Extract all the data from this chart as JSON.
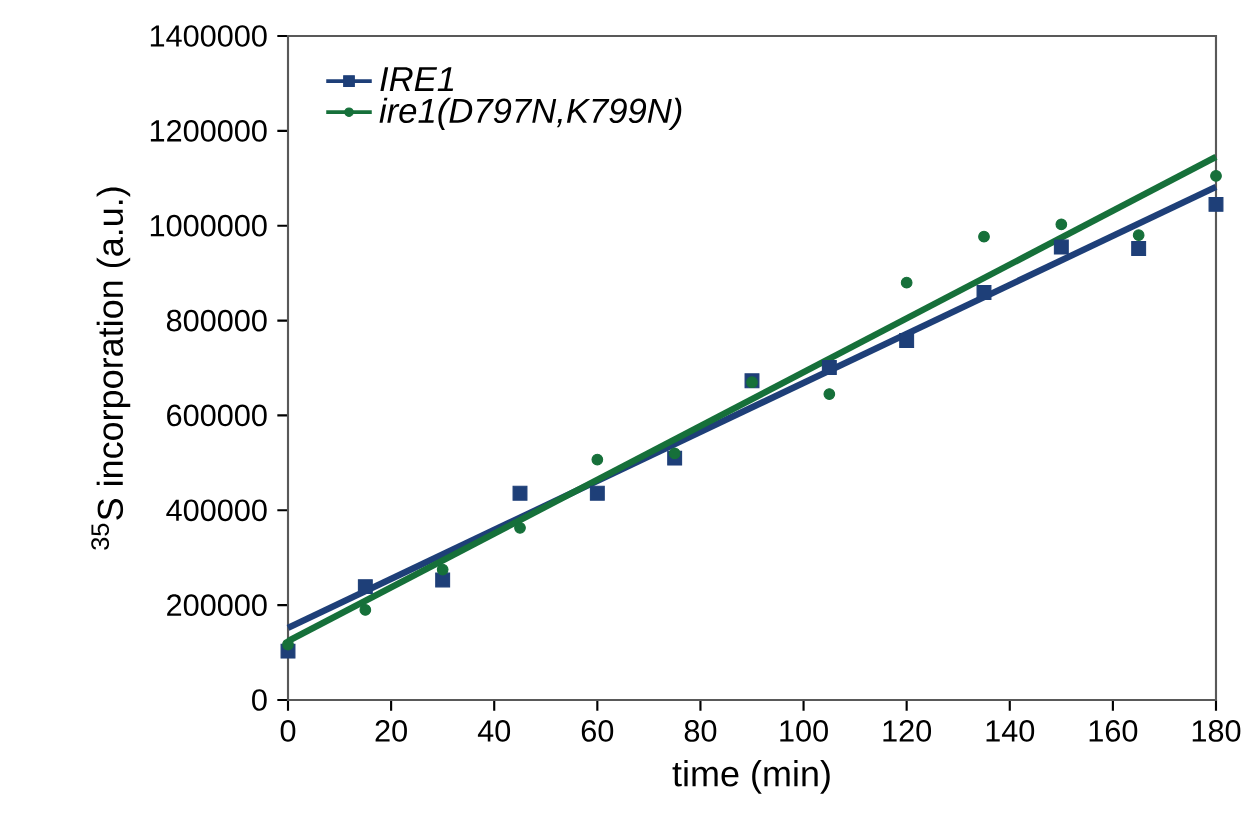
{
  "chart_data": {
    "type": "scatter",
    "xlabel": "time (min)",
    "ylabel": "$^{35}$S incorporation (a.u.)",
    "xlim": [
      0,
      180
    ],
    "xticks": [
      0,
      20,
      40,
      60,
      80,
      100,
      120,
      140,
      160,
      180
    ],
    "ylim": [
      0,
      1400000
    ],
    "yticks": [
      0,
      200000,
      400000,
      600000,
      800000,
      1000000,
      1200000,
      1400000
    ],
    "legend": "top left",
    "grid": false,
    "series": [
      {
        "name": "IRE1",
        "color": "#1e3f78",
        "marker": "square",
        "x": [
          0,
          15,
          30,
          45,
          60,
          75,
          90,
          105,
          120,
          135,
          150,
          165,
          180
        ],
        "values": [
          103000,
          239000,
          253000,
          436000,
          436000,
          510000,
          673000,
          701000,
          758000,
          859000,
          955000,
          952000,
          1045000
        ]
      },
      {
        "name": "ire1(D797N,K799N)",
        "color": "#16703a",
        "marker": "circle",
        "x": [
          0,
          15,
          30,
          45,
          60,
          75,
          90,
          105,
          120,
          135,
          150,
          165,
          180
        ],
        "values": [
          117000,
          190000,
          275000,
          363000,
          507000,
          520000,
          670000,
          645000,
          880000,
          977000,
          1003000,
          980000,
          1105000
        ]
      },
      {
        "type": "line",
        "color": "#1e3f78",
        "x": [
          0,
          180
        ],
        "values": [
          152000,
          1082000
        ]
      },
      {
        "type": "line",
        "color": "#16703a",
        "x": [
          0,
          180
        ],
        "values": [
          124000,
          1145000
        ]
      }
    ]
  }
}
